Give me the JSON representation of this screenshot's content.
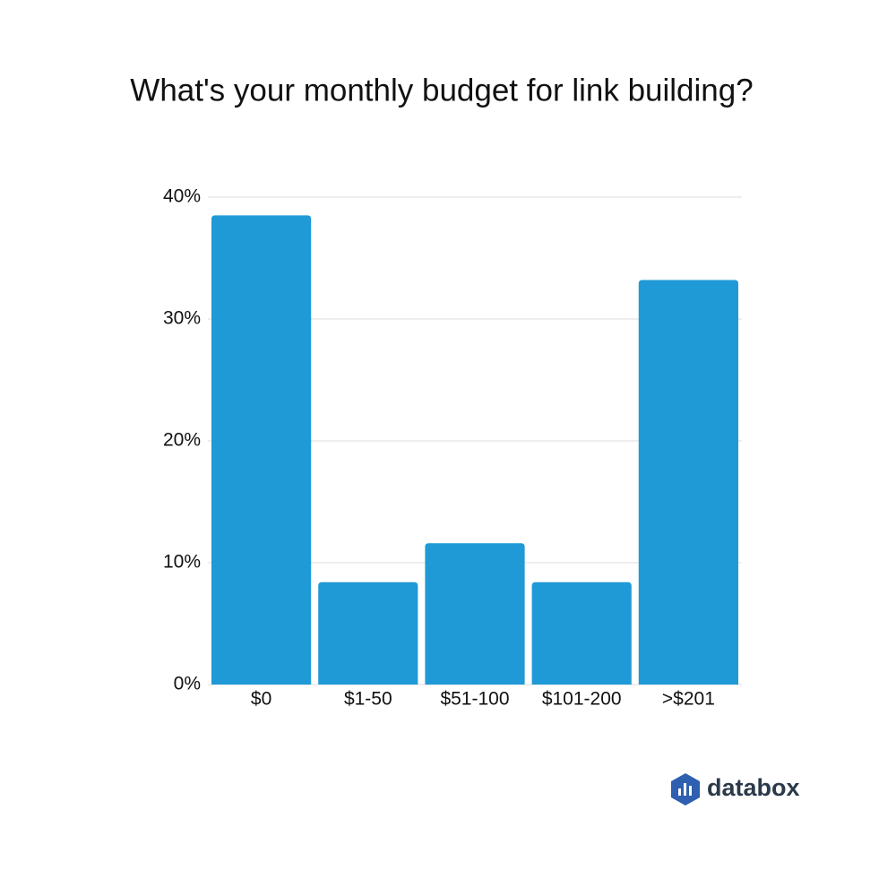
{
  "chart_data": {
    "type": "bar",
    "title": "What's your monthly budget for link building?",
    "categories": [
      "$0",
      "$1-50",
      "$51-100",
      "$101-200",
      ">$201"
    ],
    "values": [
      38.5,
      8.4,
      11.6,
      8.4,
      33.2
    ],
    "color": "#1f9ad6",
    "ylim": [
      0,
      40
    ],
    "yticks": [
      {
        "value": 0,
        "label": "0%"
      },
      {
        "value": 10,
        "label": "10%"
      },
      {
        "value": 20,
        "label": "20%"
      },
      {
        "value": 30,
        "label": "30%"
      },
      {
        "value": 40,
        "label": "40%"
      }
    ],
    "grid": true
  },
  "brand": "databox"
}
